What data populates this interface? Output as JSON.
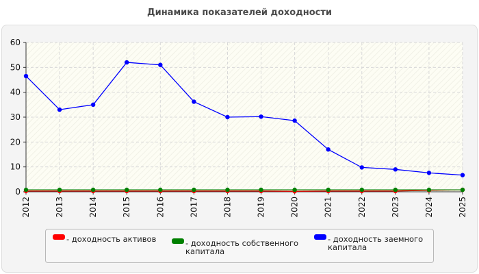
{
  "title": "Динамика показателей доходности",
  "chart_data": {
    "type": "line",
    "x": [
      "2012",
      "2013",
      "2014",
      "2015",
      "2016",
      "2017",
      "2018",
      "2019",
      "2020",
      "2021",
      "2022",
      "2023",
      "2024",
      "2025"
    ],
    "ylim": [
      0,
      60
    ],
    "yticks": [
      0,
      10,
      20,
      30,
      40,
      50,
      60
    ],
    "grid": true,
    "legend_position": "bottom",
    "series": [
      {
        "name": "- доходность активов",
        "color": "#ff0000",
        "values": [
          0.3,
          0.3,
          0.3,
          0.3,
          0.3,
          0.3,
          0.3,
          0.3,
          0.2,
          0.3,
          0.3,
          0.3,
          0.6,
          0.8
        ]
      },
      {
        "name": "- доходность собственного капитала",
        "color": "#008000",
        "values": [
          0.8,
          0.8,
          0.8,
          0.8,
          0.8,
          0.8,
          0.8,
          0.8,
          0.8,
          0.8,
          0.8,
          0.8,
          0.8,
          0.8
        ]
      },
      {
        "name": "- доходность заемного капитала",
        "color": "#0000ff",
        "values": [
          46.5,
          33.0,
          35.0,
          52.0,
          51.0,
          36.2,
          30.0,
          30.2,
          28.6,
          17.0,
          9.8,
          9.0,
          7.6,
          6.7
        ]
      }
    ]
  },
  "legend": {
    "items": [
      {
        "label_line1": "- доходность активов",
        "label_line2": "",
        "color": "#ff0000"
      },
      {
        "label_line1": "- доходность собственного",
        "label_line2": "капитала",
        "color": "#008000"
      },
      {
        "label_line1": "- доходность заемного",
        "label_line2": "капитала",
        "color": "#0000ff"
      }
    ]
  }
}
